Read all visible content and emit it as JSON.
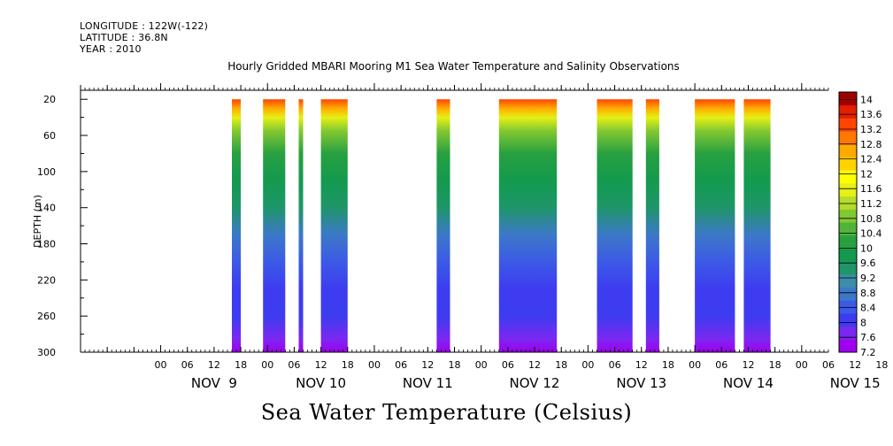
{
  "header": {
    "longitude": "LONGITUDE : 122W(-122)",
    "latitude": "LATITUDE : 36.8N",
    "year": "YEAR : 2010"
  },
  "chart_data": {
    "type": "heatmap",
    "title": "Hourly Gridded MBARI Mooring M1 Sea Water Temperature and Salinity Observations",
    "xlabel": "",
    "ylabel": "DEPTH (m)",
    "bottom_label": "Sea Water Temperature (Celsius)",
    "x_unit": "hours since NOV 9 00:00",
    "xlim": [
      -18,
      150
    ],
    "ylim": [
      300,
      10
    ],
    "y_ticks": [
      20,
      60,
      100,
      140,
      180,
      220,
      260,
      300
    ],
    "x_tick_labels": [
      "00",
      "06",
      "12",
      "18",
      "00",
      "06",
      "12",
      "18",
      "00",
      "06",
      "12",
      "18",
      "00",
      "06",
      "12",
      "18",
      "00",
      "06",
      "12",
      "18",
      "00",
      "06",
      "12",
      "18",
      "00",
      "06",
      "12",
      "18"
    ],
    "day_labels": [
      "NOV  9",
      "NOV 10",
      "NOV 11",
      "NOV 12",
      "NOV 13",
      "NOV 14",
      "NOV 15"
    ],
    "data_segments_hours": [
      [
        16,
        18
      ],
      [
        23,
        28
      ],
      [
        31,
        32
      ],
      [
        36,
        42
      ],
      [
        62,
        65
      ],
      [
        76,
        89
      ],
      [
        98,
        106
      ],
      [
        109,
        112
      ],
      [
        120,
        129
      ],
      [
        131,
        137
      ]
    ],
    "colorbar": {
      "min": 7.2,
      "max": 14.2,
      "labels": [
        "14",
        "13.6",
        "13.2",
        "12.8",
        "12.4",
        "12",
        "11.6",
        "11.2",
        "10.8",
        "10.4",
        "10",
        "9.6",
        "9.2",
        "8.8",
        "8.4",
        "8",
        "7.6",
        "7.2"
      ],
      "colors": [
        "#a000f0",
        "#7a28f0",
        "#3d3cf0",
        "#3c5ae6",
        "#3c78c8",
        "#3c8caa",
        "#1e9669",
        "#139a4e",
        "#28a040",
        "#50b43c",
        "#82c832",
        "#b4dc28",
        "#e6f014",
        "#ffff00",
        "#ffd200",
        "#ffaa00",
        "#ff7800",
        "#ff4600",
        "#e61e00",
        "#a00000"
      ]
    },
    "profile": [
      {
        "depth": 20,
        "temp": 13.4
      },
      {
        "depth": 30,
        "temp": 12.6
      },
      {
        "depth": 40,
        "temp": 11.6
      },
      {
        "depth": 55,
        "temp": 10.8
      },
      {
        "depth": 80,
        "temp": 10.2
      },
      {
        "depth": 110,
        "temp": 9.7
      },
      {
        "depth": 140,
        "temp": 9.3
      },
      {
        "depth": 170,
        "temp": 8.9
      },
      {
        "depth": 200,
        "temp": 8.5
      },
      {
        "depth": 230,
        "temp": 8.2
      },
      {
        "depth": 260,
        "temp": 7.9
      },
      {
        "depth": 285,
        "temp": 7.6
      },
      {
        "depth": 300,
        "temp": 7.3
      }
    ]
  }
}
